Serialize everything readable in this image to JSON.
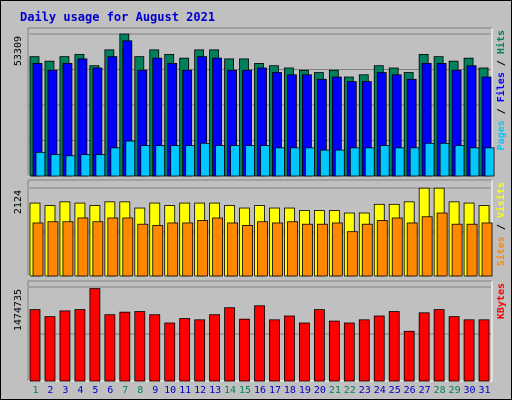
{
  "title": "Daily usage for August 2021",
  "colors": {
    "background": "#c0c0c0",
    "title": "#0000cc",
    "hits": "#00805c",
    "files": "#0000ff",
    "pages": "#00c8ff",
    "visits": "#ffff00",
    "sites": "#ff8800",
    "kbytes": "#ff0000",
    "weekend_day_label": "#00805c",
    "weekday_label": "#0000cc"
  },
  "chart_data": [
    {
      "type": "bar",
      "panel": "hits_files_pages",
      "ymax_label": "53309",
      "ylim": [
        0,
        53309
      ],
      "legend": [
        {
          "name": "Hits",
          "color": "#00805c"
        },
        {
          "name": "Files",
          "color": "#0000ff"
        },
        {
          "name": "Pages",
          "color": "#00c8ff"
        }
      ],
      "categories": [
        "1",
        "2",
        "3",
        "4",
        "5",
        "6",
        "7",
        "8",
        "9",
        "10",
        "11",
        "12",
        "13",
        "14",
        "15",
        "16",
        "17",
        "18",
        "19",
        "20",
        "21",
        "22",
        "23",
        "24",
        "25",
        "26",
        "27",
        "28",
        "29",
        "30",
        "31"
      ],
      "series": [
        {
          "name": "Hits",
          "values": [
            44810,
            43110,
            44810,
            45660,
            41410,
            47360,
            53309,
            44810,
            47360,
            45660,
            44240,
            47360,
            47360,
            43960,
            43960,
            42260,
            41410,
            40550,
            39700,
            38850,
            39700,
            37150,
            38000,
            41410,
            40550,
            38850,
            45660,
            44810,
            43110,
            44240,
            40550
          ]
        },
        {
          "name": "Files",
          "values": [
            42260,
            39700,
            42260,
            43960,
            40550,
            44810,
            50760,
            39700,
            44240,
            42260,
            39700,
            44810,
            44240,
            39700,
            39700,
            40550,
            38850,
            38000,
            38000,
            36300,
            37150,
            35450,
            35450,
            38850,
            38000,
            36300,
            42260,
            42260,
            39700,
            41410,
            37150
          ]
        },
        {
          "name": "Pages",
          "values": [
            8870,
            8020,
            7590,
            8020,
            8020,
            10570,
            13120,
            11420,
            11420,
            11420,
            11420,
            12270,
            11420,
            11420,
            11420,
            11420,
            10570,
            10570,
            10570,
            9720,
            9720,
            10570,
            10570,
            11420,
            10570,
            10570,
            12270,
            12270,
            11420,
            10570,
            10570
          ]
        }
      ]
    },
    {
      "type": "bar",
      "panel": "visits_sites",
      "ymax_label": "2124",
      "ylim": [
        0,
        2124
      ],
      "legend": [
        {
          "name": "Visits",
          "color": "#ffff00"
        },
        {
          "name": "Sites",
          "color": "#ff8800"
        }
      ],
      "categories": [
        "1",
        "2",
        "3",
        "4",
        "5",
        "6",
        "7",
        "8",
        "9",
        "10",
        "11",
        "12",
        "13",
        "14",
        "15",
        "16",
        "17",
        "18",
        "19",
        "20",
        "21",
        "22",
        "23",
        "24",
        "25",
        "26",
        "27",
        "28",
        "29",
        "30",
        "31"
      ],
      "series": [
        {
          "name": "Visits",
          "values": [
            1760,
            1700,
            1790,
            1760,
            1700,
            1790,
            1790,
            1640,
            1760,
            1700,
            1760,
            1760,
            1760,
            1700,
            1640,
            1700,
            1640,
            1640,
            1580,
            1580,
            1580,
            1520,
            1520,
            1730,
            1730,
            1790,
            2120,
            2120,
            1790,
            1760,
            1700
          ]
        },
        {
          "name": "Sites",
          "values": [
            1280,
            1310,
            1310,
            1400,
            1310,
            1400,
            1400,
            1250,
            1220,
            1280,
            1280,
            1340,
            1400,
            1280,
            1220,
            1310,
            1280,
            1310,
            1250,
            1250,
            1280,
            1070,
            1250,
            1340,
            1400,
            1280,
            1430,
            1520,
            1250,
            1250,
            1280
          ]
        }
      ]
    },
    {
      "type": "bar",
      "panel": "kbytes",
      "ymax_label": "1474735",
      "ylim": [
        0,
        1474735
      ],
      "legend": [
        {
          "name": "KBytes",
          "color": "#ff0000"
        }
      ],
      "categories": [
        "1",
        "2",
        "3",
        "4",
        "5",
        "6",
        "7",
        "8",
        "9",
        "10",
        "11",
        "12",
        "13",
        "14",
        "15",
        "16",
        "17",
        "18",
        "19",
        "20",
        "21",
        "22",
        "23",
        "24",
        "25",
        "26",
        "27",
        "28",
        "29",
        "30",
        "31"
      ],
      "series": [
        {
          "name": "KBytes",
          "values": [
            1120000,
            1010000,
            1100000,
            1120000,
            1450000,
            1040000,
            1080000,
            1090000,
            1040000,
            910000,
            980000,
            960000,
            1040000,
            1150000,
            970000,
            1180000,
            960000,
            1020000,
            910000,
            1120000,
            940000,
            910000,
            960000,
            1020000,
            1090000,
            780000,
            1070000,
            1120000,
            1010000,
            960000,
            960000
          ]
        }
      ]
    }
  ]
}
